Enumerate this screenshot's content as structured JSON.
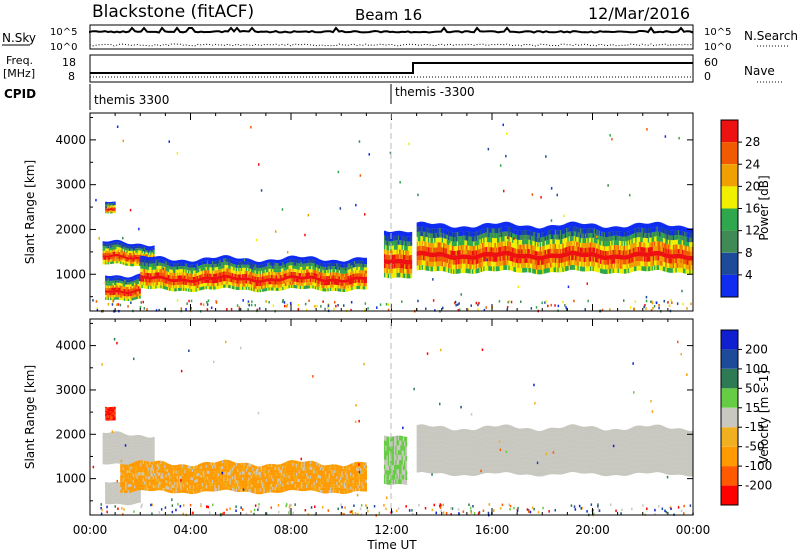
{
  "header": {
    "station": "Blackstone (fitACF)",
    "beam": "Beam 16",
    "date": "12/Mar/2016"
  },
  "top_panels": {
    "nsky_label": "N.Sky",
    "nsearch_label": "N.Search",
    "count_ticks": [
      "10^5",
      "10^0"
    ],
    "freq_label": "Freq.",
    "freq_unit": "[MHz]",
    "freq_ticks": [
      "18",
      "8"
    ],
    "nave_label": "Nave",
    "nave_ticks": [
      "60",
      "0"
    ],
    "cpid_label": "CPID",
    "cpid_entries": [
      {
        "text": "themis 3300",
        "start_hour": 0
      },
      {
        "text": "themis -3300",
        "start_hour": 12
      }
    ]
  },
  "colors": {
    "power_scale": [
      "#0f2cf0",
      "#1e4a9a",
      "#3f8a55",
      "#2fa84d",
      "#f0f000",
      "#f0a000",
      "#f05a00",
      "#ee1111"
    ],
    "velocity_scale": [
      "#ff0000",
      "#ff5a00",
      "#ff9a00",
      "#f0b020",
      "#c8c8c0",
      "#66cc44",
      "#2e7a55",
      "#1e4a9a",
      "#1020d0"
    ],
    "ground_scatter": "#c8c8c0"
  },
  "chart_data": [
    {
      "type": "heatmap",
      "panel": "power",
      "xlabel": "",
      "ylabel": "Slant Range [km]",
      "xlim": [
        0,
        24
      ],
      "ylim": [
        180,
        4600
      ],
      "yticks": [
        "1000",
        "2000",
        "3000",
        "4000"
      ],
      "colorbar": {
        "label": "Power [dB]",
        "ticks": [
          "4",
          "8",
          "12",
          "16",
          "20",
          "24",
          "28"
        ],
        "range": [
          0,
          32
        ]
      },
      "bands": [
        {
          "t_start": 0.5,
          "t_end": 2.5,
          "r_low": 1200,
          "r_high": 1700
        },
        {
          "t_start": 0.6,
          "t_end": 1.0,
          "r_low": 2350,
          "r_high": 2600
        },
        {
          "t_start": 0.6,
          "t_end": 2.0,
          "r_low": 450,
          "r_high": 1000
        },
        {
          "t_start": 2.0,
          "t_end": 11.0,
          "r_low": 650,
          "r_high": 1350
        },
        {
          "t_start": 11.7,
          "t_end": 12.8,
          "r_low": 950,
          "r_high": 2000
        },
        {
          "t_start": 13.0,
          "t_end": 24.0,
          "r_low": 1050,
          "r_high": 2100
        }
      ]
    },
    {
      "type": "heatmap",
      "panel": "velocity",
      "xlabel": "Time UT",
      "ylabel": "Slant Range [km]",
      "xlim": [
        0,
        24
      ],
      "ylim": [
        180,
        4600
      ],
      "xticks": [
        "00:00",
        "04:00",
        "08:00",
        "12:00",
        "16:00",
        "20:00",
        "00:00"
      ],
      "yticks": [
        "1000",
        "2000",
        "3000",
        "4000"
      ],
      "colorbar": {
        "label": "Velocity [m s-1]",
        "ticks": [
          "200",
          "100",
          "50",
          "15",
          "-15",
          "-50",
          "-100",
          "-200"
        ]
      },
      "bands": [
        {
          "t_start": 0.5,
          "t_end": 2.5,
          "r_low": 1300,
          "r_high": 2000,
          "class": "ground"
        },
        {
          "t_start": 0.6,
          "t_end": 1.0,
          "r_low": 2300,
          "r_high": 2600,
          "class": "negative_high"
        },
        {
          "t_start": 0.6,
          "t_end": 2.0,
          "r_low": 450,
          "r_high": 950,
          "class": "ground"
        },
        {
          "t_start": 1.2,
          "t_end": 11.0,
          "r_low": 700,
          "r_high": 1350,
          "class": "negative"
        },
        {
          "t_start": 11.7,
          "t_end": 12.6,
          "r_low": 900,
          "r_high": 2000,
          "class": "positive_low"
        },
        {
          "t_start": 13.0,
          "t_end": 24.0,
          "r_low": 1100,
          "r_high": 2150,
          "class": "ground"
        }
      ]
    }
  ]
}
